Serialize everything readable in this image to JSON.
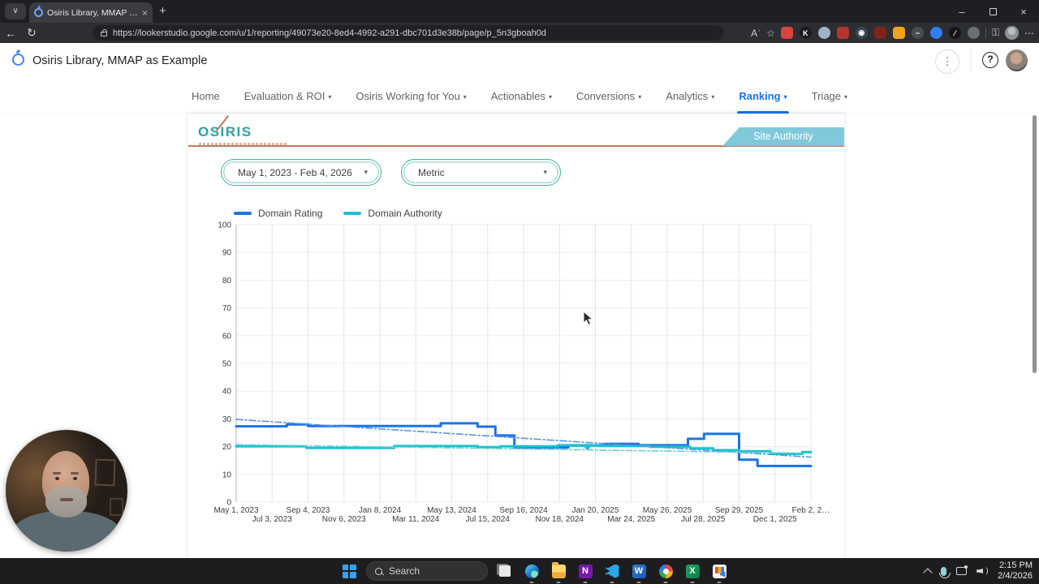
{
  "colors": {
    "domain_rating": "#1a73e8",
    "domain_rating_trend": "#5b93e0",
    "domain_authority": "#1cc2cf",
    "domain_authority_trend": "#5fd2da",
    "nav_active": "#1a73e8",
    "osiris_teal": "#2ba3a0",
    "ribbon_teal": "#7fc9da",
    "rule_salmon": "#bf7d5e"
  },
  "browser": {
    "tab": {
      "title": "Osiris Library, MMAP as Example",
      "close_glyph": "×",
      "new_tab_glyph": "+",
      "tab_list_glyph": "∨"
    },
    "toolbar": {
      "back_glyph": "←",
      "refresh_glyph": "↻",
      "url": "https://lookerstudio.google.com/u/1/reporting/49073e20-8ed4-4992-a291-dbc701d3e38b/page/p_5n3gboah0d",
      "read_aloud_glyph": "Aʾ",
      "star_glyph": "☆",
      "extensions": [
        {
          "name": "extension-red",
          "color": "#d64541",
          "glyph": ""
        },
        {
          "name": "extension-k-circle",
          "color": "#1b1b1d",
          "glyph": "K",
          "round": true
        },
        {
          "name": "extension-link",
          "color": "#9fb3c8",
          "glyph": "",
          "round": true
        },
        {
          "name": "extension-red-2",
          "color": "#b3342e",
          "glyph": ""
        },
        {
          "name": "extension-eye",
          "color": "#3a4750",
          "glyph": "◉",
          "round": true
        },
        {
          "name": "extension-dmca",
          "color": "#7e241c",
          "glyph": ""
        },
        {
          "name": "extension-bolt",
          "color": "#f2a31b",
          "glyph": ""
        },
        {
          "name": "extension-dash-circle",
          "color": "#4a4d52",
          "glyph": "−",
          "round": true
        },
        {
          "name": "extension-blue-circle",
          "color": "#2f7ef2",
          "glyph": "",
          "round": true
        },
        {
          "name": "extension-slash-circle",
          "color": "#141416",
          "glyph": "⁄",
          "round": true
        },
        {
          "name": "extension-gear",
          "color": "#6b6e73",
          "glyph": "",
          "round": true
        }
      ],
      "menu_glyph": "⋯"
    },
    "window": {
      "minimize_glyph": "–",
      "close_glyph": "×"
    }
  },
  "app_header": {
    "title": "Osiris Library, MMAP as Example",
    "kebab_glyph": "⋮",
    "help_glyph": "?"
  },
  "nav": {
    "items": [
      {
        "label": "Home",
        "caret": false,
        "active": false
      },
      {
        "label": "Evaluation & ROI",
        "caret": true,
        "active": false
      },
      {
        "label": "Osiris Working for You",
        "caret": true,
        "active": false
      },
      {
        "label": "Actionables",
        "caret": true,
        "active": false
      },
      {
        "label": "Conversions",
        "caret": true,
        "active": false
      },
      {
        "label": "Analytics",
        "caret": true,
        "active": false
      },
      {
        "label": "Ranking",
        "caret": true,
        "active": true
      },
      {
        "label": "Triage",
        "caret": true,
        "active": false
      }
    ]
  },
  "report": {
    "logo_text": "OSIRIS",
    "ribbon_label": "Site Authority",
    "date_filter_value": "May 1, 2023 - Feb 4, 2026",
    "metric_filter_value": "Metric",
    "dropdown_caret": "▾"
  },
  "chart_data": {
    "type": "line",
    "legend": [
      "Domain Rating",
      "Domain Authority"
    ],
    "legend_position": "top-left",
    "ylim": [
      0,
      100
    ],
    "y_ticks": [
      0,
      10,
      20,
      30,
      40,
      50,
      60,
      70,
      80,
      90,
      100
    ],
    "x_tick_labels": [
      "May 1, 2023",
      "Jul 3, 2023",
      "Sep 4, 2023",
      "Nov 6, 2023",
      "Jan 8, 2024",
      "Mar 11, 2024",
      "May 13, 2024",
      "Jul 15, 2024",
      "Sep 16, 2024",
      "Nov 18, 2024",
      "Jan 20, 2025",
      "Mar 24, 2025",
      "May 26, 2025",
      "Jul 28, 2025",
      "Sep 29, 2025",
      "Dec 1, 2025",
      "Feb 2, 2…"
    ],
    "grid": true,
    "series": [
      {
        "name": "Domain Rating",
        "style": "solid",
        "color_key": "domain_rating",
        "points": [
          [
            0,
            27.3
          ],
          [
            0.088,
            27.3
          ],
          [
            0.088,
            28
          ],
          [
            0.125,
            28
          ],
          [
            0.125,
            27.4
          ],
          [
            0.356,
            27.4
          ],
          [
            0.356,
            28.4
          ],
          [
            0.42,
            28.4
          ],
          [
            0.42,
            27.2
          ],
          [
            0.451,
            27.2
          ],
          [
            0.451,
            24
          ],
          [
            0.484,
            24
          ],
          [
            0.484,
            19.7
          ],
          [
            0.578,
            19.7
          ],
          [
            0.578,
            20.4
          ],
          [
            0.64,
            20.4
          ],
          [
            0.64,
            21
          ],
          [
            0.7,
            21
          ],
          [
            0.7,
            20.5
          ],
          [
            0.786,
            20.5
          ],
          [
            0.786,
            22.8
          ],
          [
            0.814,
            22.8
          ],
          [
            0.814,
            24.6
          ],
          [
            0.875,
            24.6
          ],
          [
            0.875,
            15.3
          ],
          [
            0.907,
            15.3
          ],
          [
            0.907,
            13
          ],
          [
            1,
            13
          ]
        ]
      },
      {
        "name": "Domain Authority",
        "style": "solid",
        "color_key": "domain_authority",
        "points": [
          [
            0,
            20.1
          ],
          [
            0.122,
            20.1
          ],
          [
            0.122,
            19.5
          ],
          [
            0.275,
            19.5
          ],
          [
            0.275,
            20.2
          ],
          [
            0.42,
            20.2
          ],
          [
            0.42,
            19.8
          ],
          [
            0.46,
            19.8
          ],
          [
            0.46,
            20.1
          ],
          [
            0.56,
            20.1
          ],
          [
            0.56,
            20.5
          ],
          [
            0.63,
            20.5
          ],
          [
            0.63,
            20.2
          ],
          [
            0.72,
            20.2
          ],
          [
            0.72,
            19.9
          ],
          [
            0.79,
            19.9
          ],
          [
            0.79,
            19.4
          ],
          [
            0.83,
            19.4
          ],
          [
            0.83,
            18.7
          ],
          [
            0.875,
            18.7
          ],
          [
            0.875,
            18.3
          ],
          [
            0.93,
            18.3
          ],
          [
            0.93,
            17.4
          ],
          [
            0.985,
            17.4
          ],
          [
            0.985,
            18
          ],
          [
            1,
            18
          ]
        ]
      },
      {
        "name": "Domain Rating trendline",
        "style": "dashdot",
        "color_key": "domain_rating_trend",
        "points": [
          [
            0,
            29.8
          ],
          [
            1,
            16.2
          ]
        ]
      },
      {
        "name": "Domain Authority trendline",
        "style": "dashdot",
        "color_key": "domain_authority_trend",
        "points": [
          [
            0,
            20.7
          ],
          [
            1,
            17.6
          ]
        ]
      }
    ],
    "highlight_point": {
      "series": "Domain Authority",
      "x_frac": 0.611,
      "value": 20
    }
  },
  "taskbar": {
    "search_placeholder": "Search",
    "apps": [
      {
        "id": "start",
        "running": false
      },
      {
        "id": "search",
        "running": false
      },
      {
        "id": "taskview",
        "running": false
      },
      {
        "id": "edge",
        "running": true
      },
      {
        "id": "explorer",
        "running": true
      },
      {
        "id": "onenote",
        "glyph": "N",
        "running": true
      },
      {
        "id": "vscode",
        "running": true
      },
      {
        "id": "word",
        "glyph": "W",
        "running": true
      },
      {
        "id": "m365",
        "running": true
      },
      {
        "id": "excel",
        "glyph": "X",
        "running": true
      },
      {
        "id": "snip",
        "running": true
      }
    ],
    "tray_time": "2:15 PM",
    "tray_date": "2/4/2026"
  }
}
